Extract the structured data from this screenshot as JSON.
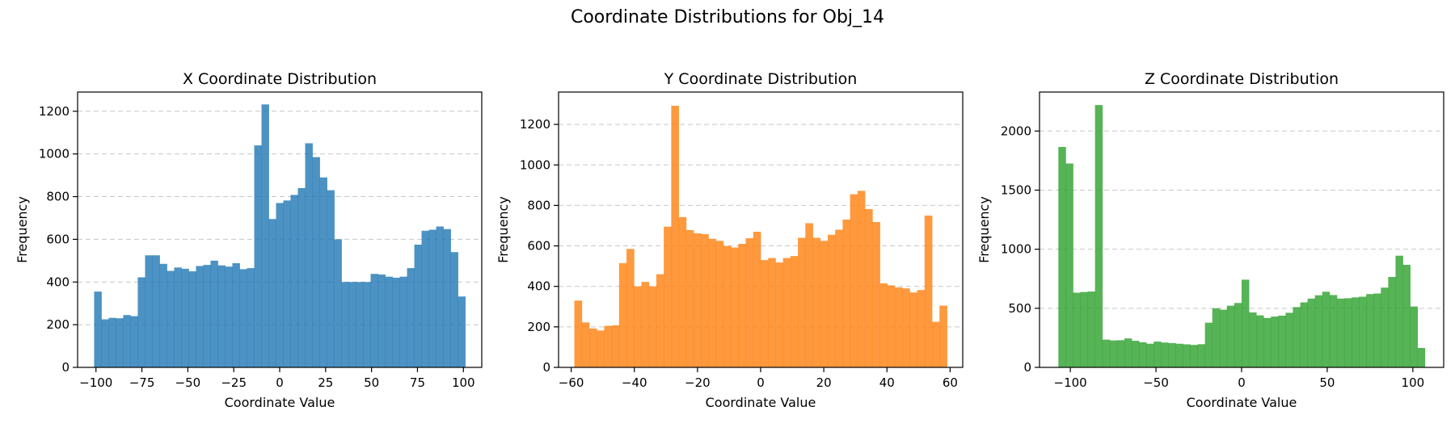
{
  "figure": {
    "suptitle": "Coordinate Distributions for Obj_14"
  },
  "chart_data": [
    {
      "type": "bar",
      "title": "X Coordinate Distribution",
      "xlabel": "Coordinate Value",
      "ylabel": "Frequency",
      "color": "#1f77b4",
      "xlim": [
        -110,
        110
      ],
      "ylim": [
        0,
        1290
      ],
      "xticks": [
        -100,
        -75,
        -50,
        -25,
        0,
        25,
        50,
        75,
        100
      ],
      "yticks": [
        0,
        200,
        400,
        600,
        800,
        1000,
        1200
      ],
      "grid": "y-dashed",
      "bin_range": [
        -101,
        101
      ],
      "values": [
        355,
        225,
        232,
        230,
        245,
        240,
        422,
        525,
        525,
        485,
        452,
        468,
        462,
        450,
        475,
        480,
        500,
        478,
        472,
        488,
        460,
        465,
        1040,
        1232,
        695,
        770,
        782,
        808,
        840,
        1050,
        985,
        890,
        830,
        600,
        400,
        400,
        400,
        400,
        438,
        435,
        425,
        420,
        425,
        465,
        575,
        640,
        645,
        660,
        648,
        540,
        332
      ]
    },
    {
      "type": "bar",
      "title": "Y Coordinate Distribution",
      "xlabel": "Coordinate Value",
      "ylabel": "Frequency",
      "color": "#ff7f0e",
      "xlim": [
        -64,
        64
      ],
      "ylim": [
        0,
        1360
      ],
      "xticks": [
        -60,
        -40,
        -20,
        0,
        20,
        40,
        60
      ],
      "yticks": [
        0,
        200,
        400,
        600,
        800,
        1000,
        1200
      ],
      "grid": "y-dashed",
      "bin_range": [
        -59,
        59
      ],
      "values": [
        330,
        222,
        192,
        182,
        205,
        208,
        515,
        585,
        400,
        422,
        400,
        460,
        695,
        1292,
        742,
        678,
        662,
        658,
        635,
        625,
        600,
        592,
        610,
        638,
        670,
        530,
        540,
        518,
        540,
        550,
        640,
        712,
        640,
        625,
        655,
        680,
        730,
        855,
        872,
        782,
        718,
        415,
        405,
        395,
        390,
        370,
        382,
        750,
        225,
        305
      ]
    },
    {
      "type": "bar",
      "title": "Z Coordinate Distribution",
      "xlabel": "Coordinate Value",
      "ylabel": "Frequency",
      "color": "#2ca02c",
      "xlim": [
        -118,
        118
      ],
      "ylim": [
        0,
        2330
      ],
      "xticks": [
        -100,
        -50,
        0,
        50,
        100
      ],
      "yticks": [
        0,
        500,
        1000,
        1500,
        2000
      ],
      "grid": "y-dashed",
      "bin_range": [
        -107,
        107
      ],
      "values": [
        1865,
        1725,
        632,
        638,
        642,
        2220,
        235,
        228,
        230,
        245,
        225,
        212,
        200,
        218,
        210,
        205,
        200,
        195,
        190,
        196,
        378,
        500,
        488,
        522,
        545,
        742,
        465,
        440,
        418,
        430,
        438,
        462,
        510,
        550,
        582,
        610,
        640,
        612,
        582,
        585,
        592,
        598,
        620,
        625,
        675,
        765,
        945,
        868,
        515,
        165
      ]
    }
  ]
}
